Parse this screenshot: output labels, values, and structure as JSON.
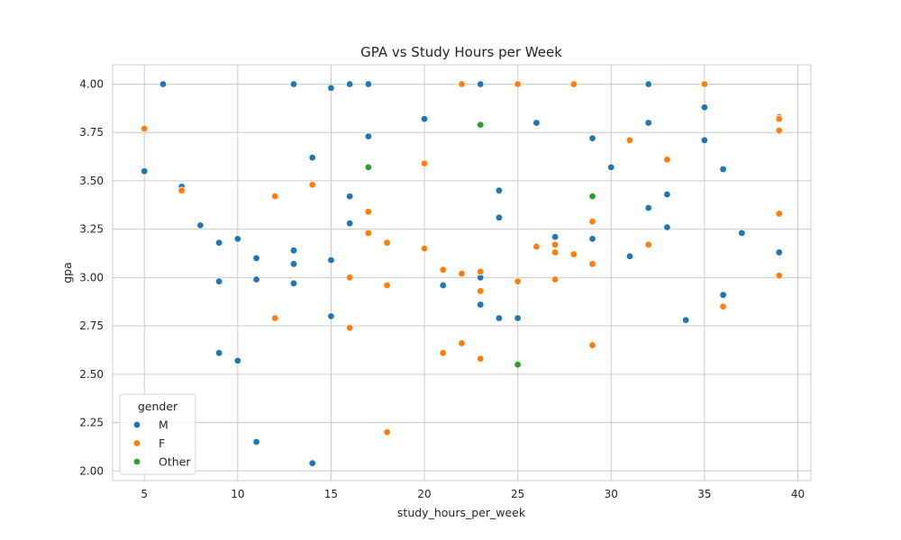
{
  "chart_data": {
    "type": "scatter",
    "title": "GPA vs Study Hours per Week",
    "xlabel": "study_hours_per_week",
    "ylabel": "gpa",
    "xlim": [
      3.3,
      40.7
    ],
    "ylim": [
      1.95,
      4.1
    ],
    "xticks": [
      5,
      10,
      15,
      20,
      25,
      30,
      35,
      40
    ],
    "yticks": [
      2.0,
      2.25,
      2.5,
      2.75,
      3.0,
      3.25,
      3.5,
      3.75,
      4.0
    ],
    "xtick_labels": [
      "5",
      "10",
      "15",
      "20",
      "25",
      "30",
      "35",
      "40"
    ],
    "ytick_labels": [
      "2.00",
      "2.25",
      "2.50",
      "2.75",
      "3.00",
      "3.25",
      "3.50",
      "3.75",
      "4.00"
    ],
    "grid": true,
    "legend": {
      "title": "gender",
      "placement": "lower-left"
    },
    "series": [
      {
        "name": "M",
        "color": "#1f77b4",
        "points": [
          [
            5,
            3.55
          ],
          [
            6,
            4.0
          ],
          [
            7,
            3.47
          ],
          [
            8,
            3.27
          ],
          [
            9,
            3.18
          ],
          [
            9,
            2.98
          ],
          [
            9,
            2.61
          ],
          [
            10,
            3.2
          ],
          [
            10,
            2.57
          ],
          [
            11,
            3.1
          ],
          [
            11,
            2.99
          ],
          [
            11,
            2.15
          ],
          [
            13,
            4.0
          ],
          [
            13,
            3.14
          ],
          [
            13,
            3.07
          ],
          [
            13,
            2.97
          ],
          [
            14,
            3.62
          ],
          [
            14,
            2.04
          ],
          [
            15,
            3.98
          ],
          [
            15,
            3.09
          ],
          [
            15,
            2.8
          ],
          [
            16,
            4.0
          ],
          [
            16,
            3.42
          ],
          [
            16,
            3.28
          ],
          [
            17,
            4.0
          ],
          [
            17,
            3.73
          ],
          [
            20,
            3.82
          ],
          [
            21,
            2.96
          ],
          [
            23,
            4.0
          ],
          [
            23,
            3.0
          ],
          [
            23,
            2.86
          ],
          [
            24,
            3.45
          ],
          [
            24,
            3.31
          ],
          [
            24,
            2.79
          ],
          [
            25,
            2.79
          ],
          [
            26,
            3.8
          ],
          [
            27,
            3.21
          ],
          [
            29,
            3.72
          ],
          [
            29,
            3.2
          ],
          [
            30,
            3.57
          ],
          [
            31,
            3.11
          ],
          [
            32,
            4.0
          ],
          [
            32,
            3.8
          ],
          [
            32,
            3.36
          ],
          [
            33,
            3.43
          ],
          [
            33,
            3.26
          ],
          [
            34,
            2.78
          ],
          [
            35,
            3.88
          ],
          [
            35,
            3.71
          ],
          [
            36,
            3.56
          ],
          [
            36,
            2.91
          ],
          [
            37,
            3.23
          ],
          [
            39,
            3.13
          ]
        ]
      },
      {
        "name": "F",
        "color": "#ff7f0e",
        "points": [
          [
            5,
            3.77
          ],
          [
            7,
            3.45
          ],
          [
            12,
            3.42
          ],
          [
            12,
            2.79
          ],
          [
            14,
            3.48
          ],
          [
            16,
            3.0
          ],
          [
            16,
            2.74
          ],
          [
            17,
            3.34
          ],
          [
            17,
            3.23
          ],
          [
            18,
            3.18
          ],
          [
            18,
            2.96
          ],
          [
            18,
            2.2
          ],
          [
            20,
            3.59
          ],
          [
            20,
            3.15
          ],
          [
            21,
            3.04
          ],
          [
            21,
            2.61
          ],
          [
            22,
            4.0
          ],
          [
            22,
            3.02
          ],
          [
            22,
            2.66
          ],
          [
            23,
            3.03
          ],
          [
            23,
            2.93
          ],
          [
            23,
            2.58
          ],
          [
            25,
            4.0
          ],
          [
            25,
            2.98
          ],
          [
            26,
            3.16
          ],
          [
            27,
            3.17
          ],
          [
            27,
            3.13
          ],
          [
            27,
            2.99
          ],
          [
            28,
            4.0
          ],
          [
            28,
            3.12
          ],
          [
            29,
            3.29
          ],
          [
            29,
            3.07
          ],
          [
            29,
            2.65
          ],
          [
            31,
            3.71
          ],
          [
            32,
            3.17
          ],
          [
            33,
            3.61
          ],
          [
            35,
            4.0
          ],
          [
            36,
            2.85
          ],
          [
            39,
            3.83
          ],
          [
            39,
            3.82
          ],
          [
            39,
            3.76
          ],
          [
            39,
            3.33
          ],
          [
            39,
            3.01
          ]
        ]
      },
      {
        "name": "Other",
        "color": "#2ca02c",
        "points": [
          [
            17,
            3.57
          ],
          [
            23,
            3.79
          ],
          [
            25,
            2.55
          ],
          [
            29,
            3.42
          ]
        ]
      }
    ]
  }
}
